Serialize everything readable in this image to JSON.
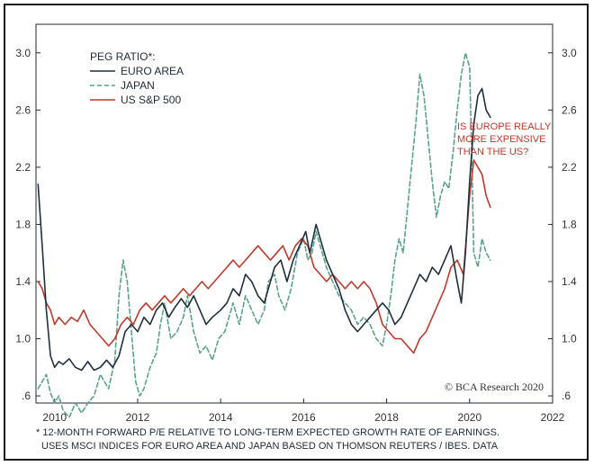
{
  "chart_data": {
    "type": "line",
    "title": "",
    "xlabel": "",
    "ylabel": "",
    "xlim": [
      2009.55,
      2022.0
    ],
    "ylim": [
      0.55,
      3.2
    ],
    "x_ticks": [
      {
        "value": 2010,
        "label": "2010"
      },
      {
        "value": 2012,
        "label": "2012"
      },
      {
        "value": 2014,
        "label": "2014"
      },
      {
        "value": 2016,
        "label": "2016"
      },
      {
        "value": 2018,
        "label": "2018"
      },
      {
        "value": 2020,
        "label": "2020"
      },
      {
        "value": 2022,
        "label": "2022"
      }
    ],
    "y_ticks": [
      {
        "value": 0.6,
        "label": ".6"
      },
      {
        "value": 1.0,
        "label": "1.0"
      },
      {
        "value": 1.4,
        "label": "1.4"
      },
      {
        "value": 1.8,
        "label": "1.8"
      },
      {
        "value": 2.2,
        "label": "2.2"
      },
      {
        "value": 2.6,
        "label": "2.6"
      },
      {
        "value": 3.0,
        "label": "3.0"
      }
    ],
    "grid": false,
    "legend": {
      "title": "PEG RATIO*:",
      "position": "top-left"
    },
    "series": [
      {
        "name": "EURO AREA",
        "color": "#1f2f3f",
        "style": "solid",
        "points": [
          [
            2009.6,
            2.08
          ],
          [
            2009.7,
            1.65
          ],
          [
            2009.8,
            1.2
          ],
          [
            2009.9,
            0.88
          ],
          [
            2010.0,
            0.8
          ],
          [
            2010.1,
            0.84
          ],
          [
            2010.2,
            0.82
          ],
          [
            2010.35,
            0.86
          ],
          [
            2010.5,
            0.8
          ],
          [
            2010.65,
            0.78
          ],
          [
            2010.8,
            0.84
          ],
          [
            2010.95,
            0.78
          ],
          [
            2011.1,
            0.8
          ],
          [
            2011.25,
            0.85
          ],
          [
            2011.4,
            0.8
          ],
          [
            2011.55,
            0.88
          ],
          [
            2011.7,
            1.05
          ],
          [
            2011.85,
            1.1
          ],
          [
            2012.0,
            1.05
          ],
          [
            2012.15,
            1.15
          ],
          [
            2012.3,
            1.1
          ],
          [
            2012.45,
            1.2
          ],
          [
            2012.6,
            1.25
          ],
          [
            2012.75,
            1.15
          ],
          [
            2012.9,
            1.22
          ],
          [
            2013.05,
            1.28
          ],
          [
            2013.2,
            1.22
          ],
          [
            2013.35,
            1.3
          ],
          [
            2013.5,
            1.2
          ],
          [
            2013.65,
            1.1
          ],
          [
            2013.8,
            1.15
          ],
          [
            2014.0,
            1.2
          ],
          [
            2014.15,
            1.25
          ],
          [
            2014.3,
            1.35
          ],
          [
            2014.45,
            1.3
          ],
          [
            2014.6,
            1.45
          ],
          [
            2014.75,
            1.4
          ],
          [
            2014.9,
            1.3
          ],
          [
            2015.05,
            1.25
          ],
          [
            2015.15,
            1.35
          ],
          [
            2015.3,
            1.5
          ],
          [
            2015.45,
            1.55
          ],
          [
            2015.6,
            1.4
          ],
          [
            2015.75,
            1.55
          ],
          [
            2015.9,
            1.65
          ],
          [
            2016.05,
            1.75
          ],
          [
            2016.15,
            1.6
          ],
          [
            2016.3,
            1.8
          ],
          [
            2016.4,
            1.7
          ],
          [
            2016.55,
            1.55
          ],
          [
            2016.7,
            1.45
          ],
          [
            2016.85,
            1.35
          ],
          [
            2017.0,
            1.2
          ],
          [
            2017.15,
            1.1
          ],
          [
            2017.3,
            1.05
          ],
          [
            2017.45,
            1.1
          ],
          [
            2017.6,
            1.15
          ],
          [
            2017.75,
            1.2
          ],
          [
            2017.9,
            1.25
          ],
          [
            2018.05,
            1.2
          ],
          [
            2018.2,
            1.1
          ],
          [
            2018.35,
            1.15
          ],
          [
            2018.5,
            1.25
          ],
          [
            2018.65,
            1.35
          ],
          [
            2018.8,
            1.45
          ],
          [
            2018.95,
            1.4
          ],
          [
            2019.1,
            1.5
          ],
          [
            2019.25,
            1.45
          ],
          [
            2019.4,
            1.55
          ],
          [
            2019.55,
            1.65
          ],
          [
            2019.7,
            1.4
          ],
          [
            2019.8,
            1.25
          ],
          [
            2019.9,
            1.6
          ],
          [
            2020.0,
            2.1
          ],
          [
            2020.1,
            2.5
          ],
          [
            2020.2,
            2.7
          ],
          [
            2020.3,
            2.75
          ],
          [
            2020.4,
            2.6
          ],
          [
            2020.5,
            2.55
          ]
        ]
      },
      {
        "name": "JAPAN",
        "color": "#5aa38a",
        "style": "dashed",
        "points": [
          [
            2009.6,
            0.65
          ],
          [
            2009.7,
            0.7
          ],
          [
            2009.8,
            0.75
          ],
          [
            2009.9,
            0.62
          ],
          [
            2010.0,
            0.55
          ],
          [
            2010.1,
            0.6
          ],
          [
            2010.2,
            0.5
          ],
          [
            2010.35,
            0.45
          ],
          [
            2010.5,
            0.55
          ],
          [
            2010.65,
            0.48
          ],
          [
            2010.8,
            0.55
          ],
          [
            2010.95,
            0.6
          ],
          [
            2011.1,
            0.75
          ],
          [
            2011.2,
            0.7
          ],
          [
            2011.3,
            0.65
          ],
          [
            2011.45,
            0.85
          ],
          [
            2011.55,
            1.3
          ],
          [
            2011.65,
            1.55
          ],
          [
            2011.75,
            1.4
          ],
          [
            2011.85,
            1.05
          ],
          [
            2011.95,
            0.7
          ],
          [
            2012.05,
            0.6
          ],
          [
            2012.15,
            0.65
          ],
          [
            2012.3,
            0.8
          ],
          [
            2012.45,
            0.9
          ],
          [
            2012.55,
            1.1
          ],
          [
            2012.65,
            1.25
          ],
          [
            2012.8,
            1.0
          ],
          [
            2012.95,
            1.05
          ],
          [
            2013.1,
            1.15
          ],
          [
            2013.2,
            1.3
          ],
          [
            2013.35,
            1.05
          ],
          [
            2013.5,
            0.9
          ],
          [
            2013.65,
            0.95
          ],
          [
            2013.8,
            0.85
          ],
          [
            2013.95,
            1.0
          ],
          [
            2014.1,
            1.05
          ],
          [
            2014.2,
            1.15
          ],
          [
            2014.3,
            1.25
          ],
          [
            2014.45,
            1.1
          ],
          [
            2014.6,
            1.3
          ],
          [
            2014.75,
            1.2
          ],
          [
            2014.9,
            1.1
          ],
          [
            2015.05,
            1.2
          ],
          [
            2015.15,
            1.4
          ],
          [
            2015.3,
            1.45
          ],
          [
            2015.4,
            1.3
          ],
          [
            2015.55,
            1.2
          ],
          [
            2015.7,
            1.35
          ],
          [
            2015.85,
            1.6
          ],
          [
            2016.0,
            1.7
          ],
          [
            2016.1,
            1.55
          ],
          [
            2016.2,
            1.6
          ],
          [
            2016.3,
            1.75
          ],
          [
            2016.4,
            1.65
          ],
          [
            2016.55,
            1.5
          ],
          [
            2016.7,
            1.4
          ],
          [
            2016.85,
            1.3
          ],
          [
            2017.0,
            1.25
          ],
          [
            2017.15,
            1.2
          ],
          [
            2017.3,
            1.1
          ],
          [
            2017.45,
            1.15
          ],
          [
            2017.6,
            1.1
          ],
          [
            2017.75,
            1.0
          ],
          [
            2017.9,
            0.95
          ],
          [
            2018.0,
            1.1
          ],
          [
            2018.1,
            1.3
          ],
          [
            2018.2,
            1.55
          ],
          [
            2018.3,
            1.7
          ],
          [
            2018.4,
            1.6
          ],
          [
            2018.5,
            1.9
          ],
          [
            2018.6,
            2.2
          ],
          [
            2018.7,
            2.5
          ],
          [
            2018.8,
            2.85
          ],
          [
            2018.9,
            2.7
          ],
          [
            2019.0,
            2.4
          ],
          [
            2019.1,
            2.1
          ],
          [
            2019.2,
            1.85
          ],
          [
            2019.3,
            2.0
          ],
          [
            2019.4,
            2.1
          ],
          [
            2019.5,
            2.05
          ],
          [
            2019.6,
            2.3
          ],
          [
            2019.7,
            2.6
          ],
          [
            2019.8,
            2.85
          ],
          [
            2019.9,
            3.0
          ],
          [
            2020.0,
            2.9
          ],
          [
            2020.05,
            2.3
          ],
          [
            2020.1,
            1.6
          ],
          [
            2020.2,
            1.5
          ],
          [
            2020.3,
            1.7
          ],
          [
            2020.4,
            1.6
          ],
          [
            2020.5,
            1.55
          ]
        ]
      },
      {
        "name": "US S&P 500",
        "color": "#c0392b",
        "style": "solid",
        "points": [
          [
            2009.6,
            1.4
          ],
          [
            2009.7,
            1.35
          ],
          [
            2009.8,
            1.25
          ],
          [
            2009.9,
            1.2
          ],
          [
            2010.0,
            1.1
          ],
          [
            2010.1,
            1.15
          ],
          [
            2010.25,
            1.1
          ],
          [
            2010.4,
            1.15
          ],
          [
            2010.55,
            1.12
          ],
          [
            2010.7,
            1.2
          ],
          [
            2010.85,
            1.1
          ],
          [
            2011.0,
            1.05
          ],
          [
            2011.15,
            1.0
          ],
          [
            2011.3,
            0.95
          ],
          [
            2011.45,
            1.0
          ],
          [
            2011.6,
            1.1
          ],
          [
            2011.75,
            1.15
          ],
          [
            2011.9,
            1.1
          ],
          [
            2012.05,
            1.2
          ],
          [
            2012.2,
            1.25
          ],
          [
            2012.35,
            1.2
          ],
          [
            2012.5,
            1.25
          ],
          [
            2012.65,
            1.3
          ],
          [
            2012.8,
            1.25
          ],
          [
            2012.95,
            1.3
          ],
          [
            2013.1,
            1.35
          ],
          [
            2013.25,
            1.3
          ],
          [
            2013.4,
            1.35
          ],
          [
            2013.55,
            1.4
          ],
          [
            2013.7,
            1.35
          ],
          [
            2013.85,
            1.4
          ],
          [
            2014.0,
            1.45
          ],
          [
            2014.15,
            1.5
          ],
          [
            2014.3,
            1.55
          ],
          [
            2014.45,
            1.5
          ],
          [
            2014.6,
            1.55
          ],
          [
            2014.75,
            1.6
          ],
          [
            2014.9,
            1.65
          ],
          [
            2015.05,
            1.6
          ],
          [
            2015.2,
            1.55
          ],
          [
            2015.35,
            1.6
          ],
          [
            2015.5,
            1.65
          ],
          [
            2015.65,
            1.55
          ],
          [
            2015.8,
            1.65
          ],
          [
            2015.95,
            1.7
          ],
          [
            2016.1,
            1.65
          ],
          [
            2016.25,
            1.5
          ],
          [
            2016.4,
            1.45
          ],
          [
            2016.55,
            1.4
          ],
          [
            2016.7,
            1.45
          ],
          [
            2016.85,
            1.4
          ],
          [
            2017.0,
            1.35
          ],
          [
            2017.15,
            1.4
          ],
          [
            2017.3,
            1.35
          ],
          [
            2017.45,
            1.4
          ],
          [
            2017.6,
            1.35
          ],
          [
            2017.75,
            1.25
          ],
          [
            2017.9,
            1.1
          ],
          [
            2018.05,
            1.05
          ],
          [
            2018.2,
            1.0
          ],
          [
            2018.35,
            1.0
          ],
          [
            2018.5,
            0.95
          ],
          [
            2018.65,
            0.9
          ],
          [
            2018.8,
            1.0
          ],
          [
            2018.95,
            1.05
          ],
          [
            2019.1,
            1.15
          ],
          [
            2019.25,
            1.25
          ],
          [
            2019.4,
            1.35
          ],
          [
            2019.55,
            1.5
          ],
          [
            2019.7,
            1.55
          ],
          [
            2019.85,
            1.45
          ],
          [
            2020.0,
            2.0
          ],
          [
            2020.1,
            2.25
          ],
          [
            2020.2,
            2.2
          ],
          [
            2020.3,
            2.15
          ],
          [
            2020.4,
            2.0
          ],
          [
            2020.5,
            1.92
          ]
        ]
      }
    ],
    "annotations": [
      {
        "lines": [
          "IS EUROPE REALLY",
          "MORE EXPENSIVE",
          "THAN THE US?"
        ],
        "color": "#c0392b"
      }
    ]
  },
  "credit": "© BCA Research 2020",
  "footnote_lines": [
    "* 12-MONTH FORWARD P/E RELATIVE TO LONG-TERM EXPECTED GROWTH RATE OF EARNINGS.",
    "USES MSCI INDICES FOR EURO AREA AND JAPAN BASED ON THOMSON REUTERS / IBES. DATA"
  ]
}
